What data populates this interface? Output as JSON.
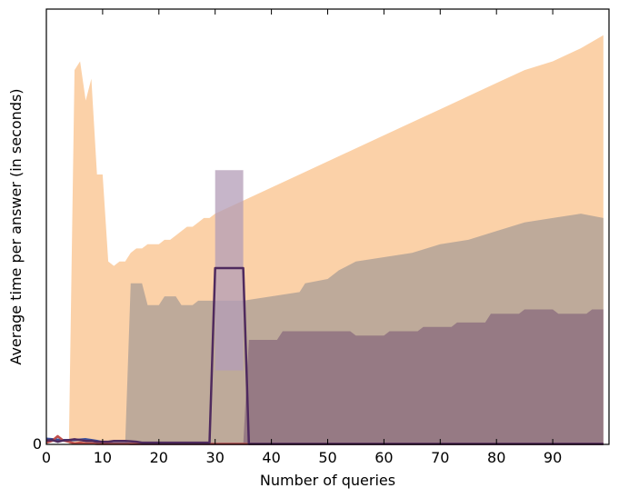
{
  "chart_data": {
    "type": "area",
    "xlabel": "Number of queries",
    "ylabel": "Average time per answer (in seconds)",
    "xlim": [
      0,
      100
    ],
    "ylim": [
      0,
      100
    ],
    "x_ticks": [
      0,
      10,
      20,
      30,
      40,
      50,
      60,
      70,
      80,
      90
    ],
    "y_ticks": [
      0
    ],
    "grid": false,
    "colors": {
      "orange_band": "#f9b26e",
      "gray_band": "#8d8a8e",
      "purple_band": "#6e4a6e",
      "peak_fill": "#b39cb7",
      "purple_line": "#4f2a5e",
      "blue_line": "#3b4f9a",
      "red_line": "#c0504d"
    },
    "series": [
      {
        "fill": "orange_band",
        "opacity": 0.6,
        "x": [
          0,
          4,
          5,
          6,
          7,
          8,
          9,
          10,
          11,
          12,
          13,
          14,
          15,
          16,
          17,
          18,
          19,
          20,
          21,
          22,
          23,
          24,
          25,
          26,
          27,
          28,
          29,
          30,
          35,
          40,
          45,
          50,
          55,
          60,
          65,
          70,
          75,
          80,
          85,
          90,
          95,
          99
        ],
        "upper": [
          0,
          0,
          86,
          88,
          79,
          84,
          62,
          62,
          42,
          41,
          42,
          42,
          44,
          45,
          45,
          46,
          46,
          46,
          47,
          47,
          48,
          49,
          50,
          50,
          51,
          52,
          52,
          53,
          56,
          59,
          62,
          65,
          68,
          71,
          74,
          77,
          80,
          83,
          86,
          88,
          91,
          94
        ],
        "lower": [
          0,
          0,
          0,
          0,
          0,
          0,
          0,
          0,
          0,
          0,
          0,
          0,
          0,
          0,
          0,
          0,
          0,
          0,
          0,
          0,
          0,
          0,
          0,
          0,
          0,
          0,
          0,
          0,
          0,
          0,
          0,
          0,
          0,
          0,
          0,
          0,
          0,
          0,
          0,
          0,
          0,
          0
        ]
      },
      {
        "fill": "gray_band",
        "opacity": 0.55,
        "x": [
          0,
          14,
          15,
          17,
          18,
          20,
          21,
          23,
          24,
          26,
          27,
          30,
          35,
          40,
          45,
          46,
          50,
          52,
          55,
          60,
          65,
          70,
          75,
          80,
          85,
          90,
          95,
          99
        ],
        "upper": [
          0,
          0,
          37,
          37,
          32,
          32,
          34,
          34,
          32,
          32,
          33,
          33,
          33,
          34,
          35,
          37,
          38,
          40,
          42,
          43,
          44,
          46,
          47,
          49,
          51,
          52,
          53,
          52
        ],
        "lower": [
          0,
          0,
          0,
          0,
          0,
          0,
          0,
          0,
          0,
          0,
          0,
          0,
          0,
          0,
          0,
          0,
          0,
          0,
          0,
          0,
          0,
          0,
          0,
          0,
          0,
          0,
          0,
          0
        ]
      },
      {
        "fill": "purple_band",
        "opacity": 0.5,
        "x": [
          0,
          35,
          36,
          41,
          42,
          54,
          55,
          60,
          61,
          66,
          67,
          72,
          73,
          78,
          79,
          84,
          85,
          90,
          91,
          96,
          97,
          99
        ],
        "upper": [
          0,
          0,
          24,
          24,
          26,
          26,
          25,
          25,
          26,
          26,
          27,
          27,
          28,
          28,
          30,
          30,
          31,
          31,
          30,
          30,
          31,
          31
        ],
        "lower": [
          0,
          0,
          0,
          0,
          0,
          0,
          0,
          0,
          0,
          0,
          0,
          0,
          0,
          0,
          0,
          0,
          0,
          0,
          0,
          0,
          0,
          0
        ]
      },
      {
        "fill": "peak_fill",
        "opacity": 0.75,
        "x": [
          30,
          35
        ],
        "upper": [
          63,
          63
        ],
        "lower": [
          17,
          17
        ]
      }
    ],
    "lines": [
      {
        "color": "blue_line",
        "x": [
          0,
          1,
          2,
          3,
          4,
          5,
          6,
          7,
          8,
          9,
          10,
          11,
          12,
          13,
          14,
          15,
          16,
          17,
          18,
          19,
          20,
          25,
          29,
          30,
          35,
          36,
          40,
          50,
          60,
          70,
          80,
          90,
          99
        ],
        "y": [
          1.3,
          1.2,
          1.1,
          1.0,
          1.0,
          1.0,
          1.1,
          1.2,
          1.0,
          0.8,
          0.5,
          0.3,
          0.2,
          0.2,
          0.2,
          0.1,
          0.1,
          0.1,
          0.1,
          0.1,
          0.1,
          0.1,
          0.1,
          0.1,
          0.1,
          0.1,
          0.1,
          0.1,
          0.1,
          0.1,
          0.1,
          0.1,
          0.1
        ]
      },
      {
        "color": "red_line",
        "x": [
          0,
          1,
          2,
          3,
          4,
          5,
          6,
          7,
          8,
          9,
          10,
          11,
          12,
          13,
          14,
          15,
          16,
          17,
          18,
          19,
          20,
          25,
          29,
          30,
          35,
          36,
          40,
          50,
          60,
          70,
          80,
          90,
          99
        ],
        "y": [
          0.4,
          0.8,
          1.9,
          0.9,
          0.6,
          0.2,
          0.4,
          0.2,
          0.2,
          0.1,
          0.1,
          0.1,
          0.1,
          0.1,
          0.1,
          0.1,
          0.1,
          0.1,
          0.1,
          0.1,
          0.1,
          0.1,
          0.1,
          0.1,
          0.1,
          0.1,
          0.1,
          0.1,
          0.1,
          0.1,
          0.1,
          0.1,
          0.1
        ]
      },
      {
        "color": "purple_line",
        "x": [
          0,
          1,
          2,
          3,
          4,
          5,
          6,
          7,
          8,
          9,
          10,
          11,
          12,
          13,
          14,
          15,
          16,
          17,
          18,
          19,
          20,
          25,
          29,
          30,
          35,
          36,
          40,
          50,
          60,
          70,
          80,
          90,
          99
        ],
        "y": [
          0.9,
          1.0,
          0.6,
          0.9,
          1.0,
          1.2,
          1.0,
          0.8,
          0.8,
          0.6,
          0.6,
          0.6,
          0.8,
          0.8,
          0.8,
          0.7,
          0.6,
          0.4,
          0.4,
          0.4,
          0.4,
          0.4,
          0.4,
          40.5,
          40.5,
          0.1,
          0.1,
          0.1,
          0.1,
          0.1,
          0.1,
          0.1,
          0.1
        ]
      }
    ]
  }
}
